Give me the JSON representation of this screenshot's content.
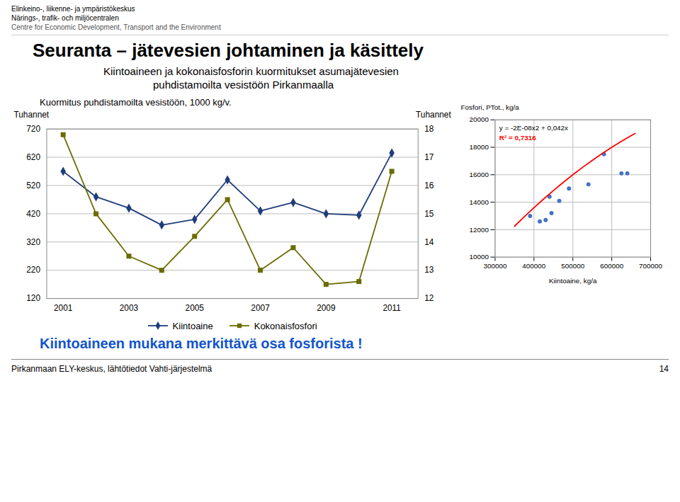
{
  "title": "Seuranta – jätevesien johtaminen ja käsittely",
  "subtitle": [
    "Kiintoaineen ja kokonaisfosforin kuormitukset asumajätevesien",
    "puhdistamoilta vesistöön Pirkanmaalla"
  ],
  "annotations": [
    {
      "text": "Elinkeino-, liikenne- ja ympäristökeskus"
    },
    {
      "text": "Närings-, trafik- och miljöcentralen"
    },
    {
      "text": "Centre for Economic Development, Transport and the Environment",
      "color": "#555555"
    },
    {
      "text": "Kiintoaineen mukana merkittävä osa fosforista !",
      "color": "#1155CC"
    },
    {
      "text": "Pirkanmaan ELY-keskus, lähtötiedot Vahti-järjestelmä"
    },
    {
      "text": "14"
    }
  ],
  "chart_data": [
    {
      "type": "line",
      "title": "Kuormitus puhdistamoilta vesistöön, 1000 kg/v.",
      "x": [
        2001,
        2002,
        2003,
        2004,
        2005,
        2006,
        2007,
        2008,
        2009,
        2010,
        2011
      ],
      "xlim": [
        2000.5,
        2011.8
      ],
      "xticks": [
        2001,
        2003,
        2005,
        2007,
        2009,
        2011
      ],
      "ylim": [
        120,
        720
      ],
      "yticks": [
        120,
        220,
        320,
        420,
        520,
        620,
        720
      ],
      "y2lim": [
        12,
        18
      ],
      "y2ticks": [
        12,
        13,
        14,
        15,
        16,
        17,
        18
      ],
      "ylabel": "Tuhannet",
      "y2label": "Tuhannet",
      "grid": "y",
      "legend": "bottom",
      "series": [
        {
          "name": "Kiintoaine",
          "color": "#1F3D7A",
          "marker": "diamond",
          "values": [
            570,
            480,
            440,
            380,
            400,
            540,
            430,
            460,
            420,
            415,
            635
          ]
        },
        {
          "name": "Kokonaisfosfori",
          "color": "#6B6B00",
          "marker": "square",
          "axis": "y2",
          "values": [
            17.8,
            15.0,
            13.5,
            13.0,
            14.2,
            15.5,
            13.0,
            13.8,
            12.5,
            12.6,
            16.5
          ]
        }
      ]
    },
    {
      "type": "scatter",
      "xlim": [
        300000,
        700000
      ],
      "xticks": [
        300000,
        400000,
        500000,
        600000,
        700000
      ],
      "ylim": [
        10000,
        20000
      ],
      "yticks": [
        10000,
        12000,
        14000,
        16000,
        18000,
        20000
      ],
      "xlabel": "Kiintoaine, kg/a",
      "ylabel": "Fosfori, PTot., kg/a",
      "grid": true,
      "annotations": [
        {
          "text": "y = -2E-08x2 + 0,042x"
        },
        {
          "text": "R² = 0,7316",
          "color": "red"
        }
      ],
      "series": [
        {
          "type": "scatter",
          "color": "#4472C4",
          "marker": "circle",
          "x": [
            390000,
            415000,
            430000,
            440000,
            445000,
            465000,
            490000,
            540000,
            580000,
            625000,
            640000
          ],
          "values": [
            13000,
            12600,
            12700,
            14400,
            13200,
            14100,
            15000,
            15300,
            17500,
            16100,
            16100
          ]
        },
        {
          "type": "line",
          "color": "red",
          "x": [
            350000,
            375000,
            400000,
            425000,
            450000,
            475000,
            500000,
            525000,
            550000,
            575000,
            600000,
            625000,
            650000,
            660000
          ],
          "values": [
            12250,
            12937.5,
            13600,
            14237.5,
            14850,
            15437.5,
            16000,
            16537.5,
            17050,
            17537.5,
            18000,
            18437.5,
            18850,
            19008
          ]
        }
      ]
    }
  ]
}
